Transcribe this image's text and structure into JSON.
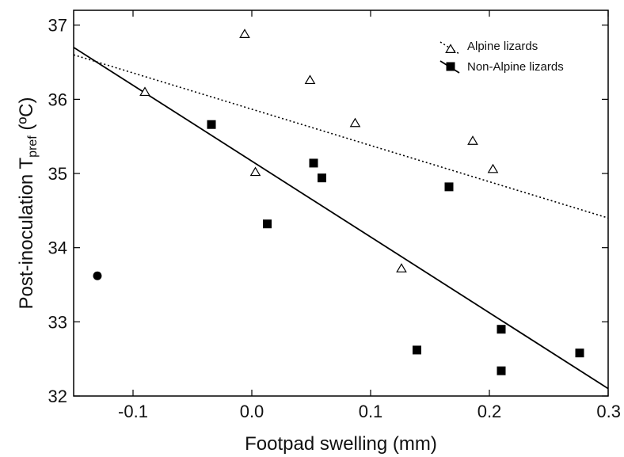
{
  "chart_data": {
    "type": "scatter",
    "xlabel": "Footpad swelling (mm)",
    "ylabel": {
      "main": "Post-inoculation T",
      "sub": "pref",
      "unit": " (ºC)"
    },
    "xlim": [
      -0.15,
      0.3
    ],
    "ylim": [
      32,
      37.2
    ],
    "x_ticks": [
      -0.1,
      0.0,
      0.1,
      0.2,
      0.3
    ],
    "x_tick_labels": [
      "-0.1",
      "0.0",
      "0.1",
      "0.2",
      "0.3"
    ],
    "y_ticks": [
      32,
      33,
      34,
      35,
      36,
      37
    ],
    "y_tick_labels": [
      "32",
      "33",
      "34",
      "35",
      "36",
      "37"
    ],
    "grid": false,
    "legend_position": "top-right",
    "series": [
      {
        "name": "Alpine lizards",
        "marker": "open-triangle",
        "line_style": "dotted",
        "color": "#000000",
        "points": [
          {
            "x": -0.09,
            "y": 36.1
          },
          {
            "x": -0.006,
            "y": 36.88
          },
          {
            "x": 0.003,
            "y": 35.02
          },
          {
            "x": 0.049,
            "y": 36.26
          },
          {
            "x": 0.087,
            "y": 35.68
          },
          {
            "x": 0.126,
            "y": 33.72
          },
          {
            "x": 0.186,
            "y": 35.44
          },
          {
            "x": 0.203,
            "y": 35.06
          }
        ],
        "fit": [
          {
            "x": -0.15,
            "y": 36.6
          },
          {
            "x": 0.3,
            "y": 34.4
          }
        ]
      },
      {
        "name": "Non-Alpine lizards",
        "marker": "filled-square",
        "line_style": "solid",
        "color": "#000000",
        "points": [
          {
            "x": -0.034,
            "y": 35.66
          },
          {
            "x": 0.013,
            "y": 34.32
          },
          {
            "x": 0.052,
            "y": 35.14
          },
          {
            "x": 0.059,
            "y": 34.94
          },
          {
            "x": 0.139,
            "y": 32.62
          },
          {
            "x": 0.166,
            "y": 34.82
          },
          {
            "x": 0.21,
            "y": 32.9
          },
          {
            "x": 0.21,
            "y": 32.34
          },
          {
            "x": 0.276,
            "y": 32.58
          }
        ],
        "fit": [
          {
            "x": -0.15,
            "y": 36.7
          },
          {
            "x": 0.3,
            "y": 32.1
          }
        ]
      }
    ],
    "extra_points": [
      {
        "x": -0.13,
        "y": 33.62,
        "marker": "filled-circle",
        "color": "#000000"
      }
    ]
  }
}
